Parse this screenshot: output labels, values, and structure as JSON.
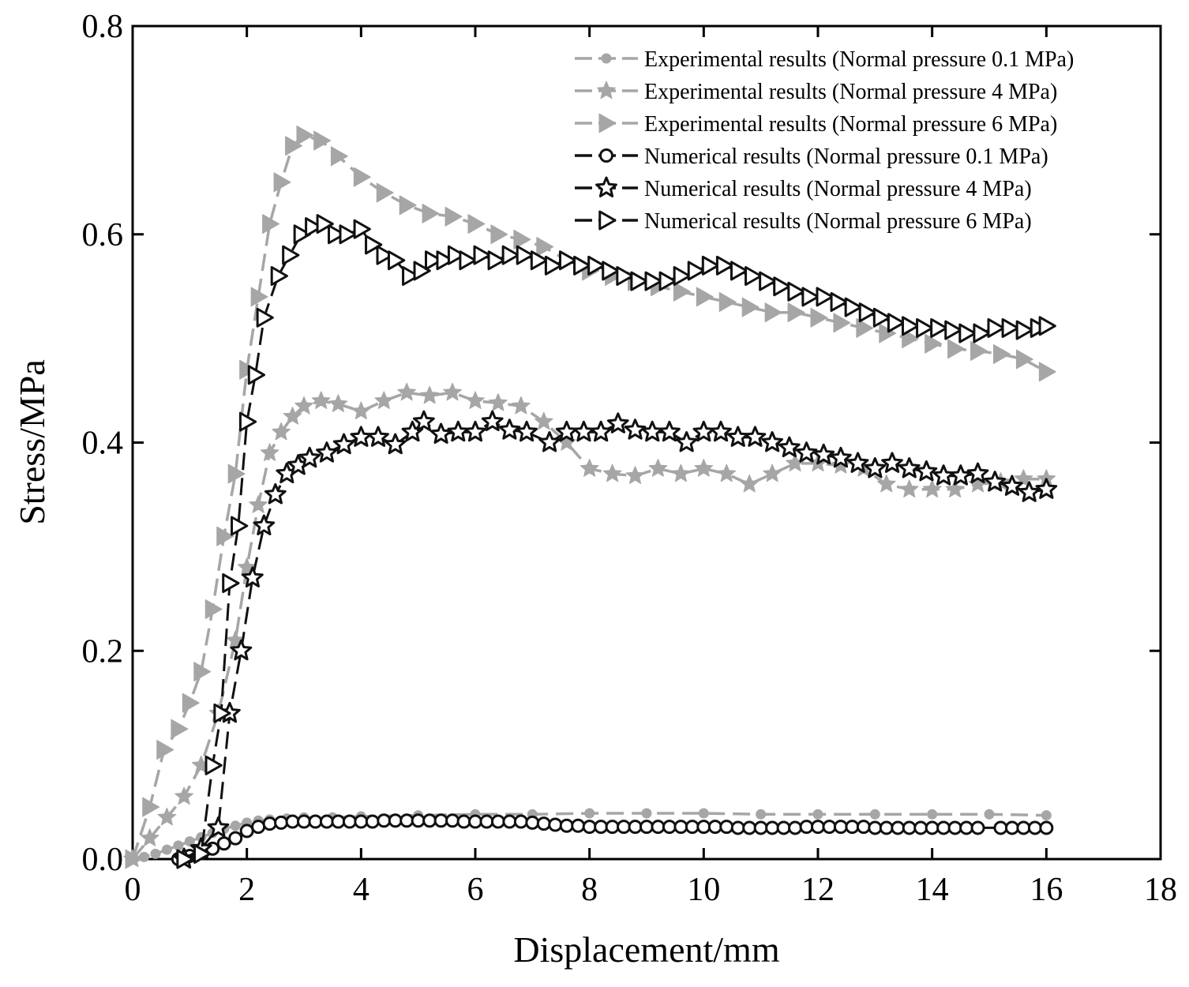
{
  "chart_data": {
    "type": "line",
    "xlabel": "Displacement/mm",
    "ylabel": "Stress/MPa",
    "xlim": [
      0,
      18
    ],
    "ylim": [
      0,
      0.8
    ],
    "xticks": [
      "0",
      "2",
      "4",
      "6",
      "8",
      "10",
      "12",
      "14",
      "16",
      "18"
    ],
    "yticks": [
      "0.0",
      "0.2",
      "0.4",
      "0.6",
      "0.8"
    ],
    "legend_position": "top-right",
    "colors": {
      "experimental": "#a6a6a6",
      "numerical": "#111111"
    },
    "series": [
      {
        "name": "Experimental results (Normal pressure 0.1 MPa)",
        "group": "experimental",
        "marker": "circle-filled",
        "x": [
          0,
          0.2,
          0.4,
          0.6,
          0.8,
          1.0,
          1.2,
          1.4,
          1.6,
          1.8,
          2.0,
          2.2,
          2.4,
          2.7,
          3.0,
          3.5,
          4.0,
          5.0,
          6.0,
          7.0,
          8.0,
          9.0,
          10.0,
          11.0,
          12.0,
          13.0,
          14.0,
          15.0,
          16.0
        ],
        "y": [
          0,
          0.002,
          0.005,
          0.009,
          0.013,
          0.017,
          0.021,
          0.025,
          0.029,
          0.032,
          0.035,
          0.037,
          0.038,
          0.039,
          0.04,
          0.04,
          0.041,
          0.042,
          0.043,
          0.043,
          0.044,
          0.044,
          0.044,
          0.043,
          0.043,
          0.043,
          0.043,
          0.043,
          0.042
        ]
      },
      {
        "name": "Experimental results (Normal pressure 4 MPa)",
        "group": "experimental",
        "marker": "star-filled",
        "x": [
          0,
          0.3,
          0.6,
          0.9,
          1.2,
          1.5,
          1.8,
          2.0,
          2.2,
          2.4,
          2.6,
          2.8,
          3.0,
          3.3,
          3.6,
          4.0,
          4.4,
          4.8,
          5.2,
          5.6,
          6.0,
          6.4,
          6.8,
          7.2,
          7.6,
          8.0,
          8.4,
          8.8,
          9.2,
          9.6,
          10.0,
          10.4,
          10.8,
          11.2,
          11.6,
          12.0,
          12.4,
          12.8,
          13.2,
          13.6,
          14.0,
          14.4,
          14.8,
          15.2,
          15.6,
          16.0
        ],
        "y": [
          0,
          0.02,
          0.04,
          0.06,
          0.09,
          0.14,
          0.21,
          0.28,
          0.34,
          0.39,
          0.41,
          0.425,
          0.435,
          0.44,
          0.437,
          0.43,
          0.44,
          0.448,
          0.445,
          0.448,
          0.44,
          0.438,
          0.435,
          0.42,
          0.4,
          0.375,
          0.37,
          0.368,
          0.375,
          0.37,
          0.375,
          0.37,
          0.36,
          0.37,
          0.38,
          0.38,
          0.378,
          0.375,
          0.36,
          0.355,
          0.355,
          0.355,
          0.36,
          0.362,
          0.365,
          0.365
        ]
      },
      {
        "name": "Experimental results (Normal pressure 6 MPa)",
        "group": "experimental",
        "marker": "triangle-right-filled",
        "x": [
          0,
          0.3,
          0.55,
          0.8,
          1.0,
          1.2,
          1.4,
          1.6,
          1.8,
          2.0,
          2.2,
          2.4,
          2.6,
          2.8,
          3.0,
          3.3,
          3.6,
          4.0,
          4.4,
          4.8,
          5.2,
          5.6,
          6.0,
          6.4,
          6.8,
          7.2,
          7.6,
          8.0,
          8.4,
          8.8,
          9.2,
          9.6,
          10.0,
          10.4,
          10.8,
          11.2,
          11.6,
          12.0,
          12.4,
          12.8,
          13.2,
          13.6,
          14.0,
          14.4,
          14.8,
          15.2,
          15.6,
          16.0
        ],
        "y": [
          0,
          0.05,
          0.105,
          0.125,
          0.15,
          0.18,
          0.24,
          0.31,
          0.37,
          0.47,
          0.54,
          0.61,
          0.65,
          0.685,
          0.695,
          0.69,
          0.675,
          0.655,
          0.64,
          0.628,
          0.62,
          0.617,
          0.61,
          0.6,
          0.595,
          0.588,
          0.575,
          0.565,
          0.56,
          0.555,
          0.55,
          0.545,
          0.54,
          0.535,
          0.53,
          0.525,
          0.525,
          0.52,
          0.515,
          0.51,
          0.505,
          0.5,
          0.495,
          0.49,
          0.488,
          0.485,
          0.48,
          0.468
        ]
      },
      {
        "name": "Numerical results (Normal pressure 0.1 MPa)",
        "group": "numerical",
        "marker": "circle-open",
        "x": [
          0.8,
          1.0,
          1.2,
          1.4,
          1.6,
          1.8,
          2.0,
          2.2,
          2.4,
          2.6,
          2.8,
          3.0,
          3.2,
          3.4,
          3.6,
          3.8,
          4.0,
          4.2,
          4.4,
          4.6,
          4.8,
          5.0,
          5.2,
          5.4,
          5.6,
          5.8,
          6.0,
          6.2,
          6.4,
          6.6,
          6.8,
          7.0,
          7.2,
          7.4,
          7.6,
          7.8,
          8.0,
          8.2,
          8.4,
          8.6,
          8.8,
          9.0,
          9.2,
          9.4,
          9.6,
          9.8,
          10.0,
          10.2,
          10.4,
          10.6,
          10.8,
          11.0,
          11.2,
          11.4,
          11.6,
          11.8,
          12.0,
          12.2,
          12.4,
          12.6,
          12.8,
          13.0,
          13.2,
          13.4,
          13.6,
          13.8,
          14.0,
          14.2,
          14.4,
          14.6,
          14.8,
          15.2,
          15.4,
          15.6,
          15.8,
          16.0
        ],
        "y": [
          0,
          0.003,
          0.006,
          0.01,
          0.015,
          0.02,
          0.027,
          0.031,
          0.034,
          0.035,
          0.036,
          0.036,
          0.036,
          0.036,
          0.036,
          0.036,
          0.036,
          0.036,
          0.037,
          0.037,
          0.037,
          0.037,
          0.037,
          0.037,
          0.037,
          0.036,
          0.036,
          0.036,
          0.036,
          0.036,
          0.036,
          0.035,
          0.034,
          0.033,
          0.032,
          0.032,
          0.031,
          0.031,
          0.031,
          0.031,
          0.031,
          0.031,
          0.031,
          0.031,
          0.031,
          0.031,
          0.031,
          0.031,
          0.031,
          0.03,
          0.03,
          0.03,
          0.03,
          0.03,
          0.03,
          0.031,
          0.031,
          0.031,
          0.031,
          0.031,
          0.031,
          0.03,
          0.03,
          0.03,
          0.03,
          0.03,
          0.03,
          0.03,
          0.03,
          0.03,
          0.03,
          0.03,
          0.03,
          0.03,
          0.03,
          0.03
        ]
      },
      {
        "name": "Numerical results (Normal pressure 4 MPa)",
        "group": "numerical",
        "marker": "star-open",
        "x": [
          0.9,
          1.2,
          1.5,
          1.7,
          1.9,
          2.1,
          2.3,
          2.5,
          2.7,
          2.9,
          3.1,
          3.4,
          3.7,
          4.0,
          4.3,
          4.6,
          4.9,
          5.1,
          5.4,
          5.7,
          6.0,
          6.3,
          6.6,
          6.9,
          7.3,
          7.6,
          7.9,
          8.2,
          8.5,
          8.8,
          9.1,
          9.4,
          9.7,
          10.0,
          10.3,
          10.6,
          10.9,
          11.2,
          11.5,
          11.8,
          12.1,
          12.4,
          12.7,
          13.0,
          13.3,
          13.6,
          13.9,
          14.2,
          14.5,
          14.8,
          15.1,
          15.4,
          15.7,
          16.0
        ],
        "y": [
          0,
          0.01,
          0.03,
          0.14,
          0.2,
          0.27,
          0.32,
          0.35,
          0.37,
          0.378,
          0.385,
          0.39,
          0.398,
          0.405,
          0.405,
          0.398,
          0.41,
          0.42,
          0.408,
          0.41,
          0.41,
          0.42,
          0.412,
          0.41,
          0.4,
          0.41,
          0.41,
          0.41,
          0.418,
          0.412,
          0.41,
          0.41,
          0.4,
          0.41,
          0.41,
          0.405,
          0.405,
          0.4,
          0.395,
          0.39,
          0.388,
          0.385,
          0.38,
          0.375,
          0.38,
          0.375,
          0.372,
          0.368,
          0.368,
          0.37,
          0.362,
          0.358,
          0.352,
          0.355
        ]
      },
      {
        "name": "Numerical results (Normal pressure 6 MPa)",
        "group": "numerical",
        "marker": "triangle-right-open",
        "x": [
          0.9,
          1.2,
          1.4,
          1.55,
          1.7,
          1.85,
          2.0,
          2.15,
          2.3,
          2.55,
          2.75,
          2.95,
          3.15,
          3.35,
          3.55,
          3.75,
          4.0,
          4.2,
          4.4,
          4.6,
          4.85,
          5.05,
          5.25,
          5.45,
          5.65,
          5.85,
          6.1,
          6.35,
          6.6,
          6.85,
          7.1,
          7.35,
          7.6,
          7.85,
          8.1,
          8.35,
          8.6,
          8.85,
          9.1,
          9.35,
          9.6,
          9.85,
          10.1,
          10.35,
          10.6,
          10.85,
          11.1,
          11.35,
          11.6,
          11.85,
          12.1,
          12.35,
          12.6,
          12.85,
          13.1,
          13.35,
          13.6,
          13.85,
          14.1,
          14.35,
          14.6,
          14.85,
          15.1,
          15.35,
          15.6,
          15.85,
          16.0
        ],
        "y": [
          0,
          0.005,
          0.09,
          0.14,
          0.265,
          0.32,
          0.42,
          0.465,
          0.52,
          0.56,
          0.58,
          0.6,
          0.607,
          0.61,
          0.6,
          0.6,
          0.605,
          0.59,
          0.58,
          0.575,
          0.56,
          0.565,
          0.575,
          0.575,
          0.58,
          0.575,
          0.58,
          0.575,
          0.58,
          0.58,
          0.575,
          0.57,
          0.575,
          0.57,
          0.57,
          0.565,
          0.56,
          0.555,
          0.555,
          0.555,
          0.56,
          0.565,
          0.57,
          0.57,
          0.565,
          0.56,
          0.555,
          0.55,
          0.545,
          0.54,
          0.54,
          0.535,
          0.53,
          0.525,
          0.52,
          0.515,
          0.512,
          0.51,
          0.51,
          0.508,
          0.505,
          0.505,
          0.51,
          0.51,
          0.508,
          0.51,
          0.512
        ]
      }
    ]
  }
}
